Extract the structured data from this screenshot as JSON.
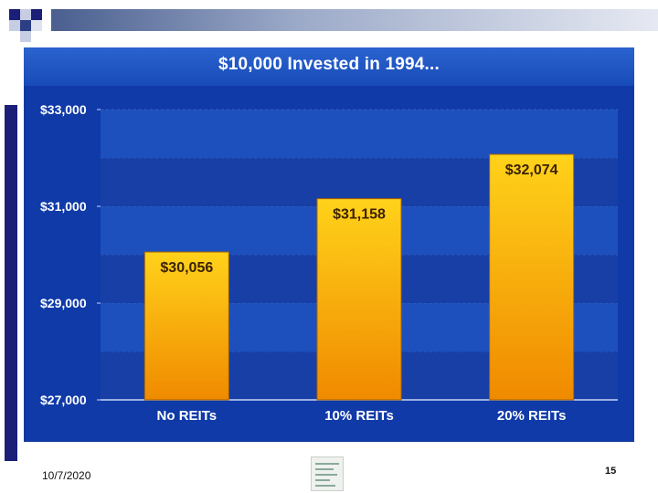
{
  "colors": {
    "frame_bg": "#0f3aa8",
    "band_a": "#173fa6",
    "band_b": "#1d50bd",
    "bar_top": "#ffd21a",
    "bar_bottom": "#f08a00",
    "side_rule": "#1b1f78"
  },
  "footer": {
    "date": "10/7/2020",
    "page_number": "15"
  },
  "chart_data": {
    "type": "bar",
    "title": "$10,000 Invested in 1994...",
    "categories": [
      "No REITs",
      "10% REITs",
      "20% REITs"
    ],
    "values": [
      30056,
      31158,
      32074
    ],
    "value_labels": [
      "$30,056",
      "$31,158",
      "$32,074"
    ],
    "ylim": [
      27000,
      33000
    ],
    "yticks": [
      27000,
      29000,
      31000,
      33000
    ],
    "ytick_labels": [
      "$27,000",
      "$29,000",
      "$31,000",
      "$33,000"
    ],
    "xlabel": "",
    "ylabel": "",
    "grid": true,
    "legend": false
  }
}
